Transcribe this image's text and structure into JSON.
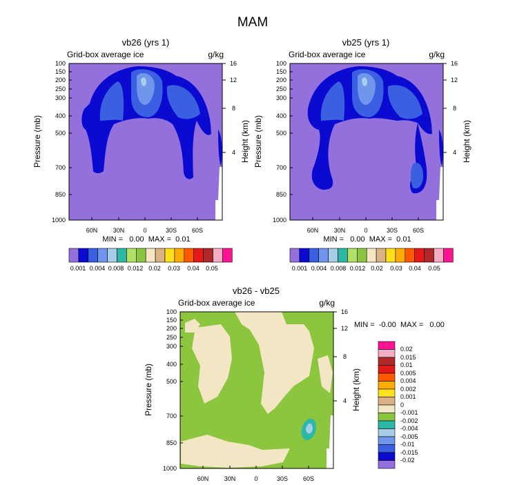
{
  "figure_title": "MAM",
  "chart_data": [
    {
      "type": "heatmap",
      "panel": "left",
      "title": "vb26 (yrs 1)",
      "field_label": "Grid-box average ice",
      "units": "g/kg",
      "ylabel": "Pressure (mb)",
      "ylabel_right": "Height (km)",
      "y_ticks": [
        "100",
        "150",
        "200",
        "250",
        "300",
        "400",
        "500",
        "700",
        "850",
        "1000"
      ],
      "y_right_ticks": [
        "16",
        "12",
        "8",
        "4"
      ],
      "x_ticks": [
        "60N",
        "30N",
        "0",
        "30S",
        "60S"
      ],
      "stats": "MIN =   0.00  MAX =  0.01",
      "legend_levels": [
        "0.001",
        "0.004",
        "0.008",
        "0.012",
        "0.02",
        "0.03",
        "0.04",
        "0.05"
      ],
      "legend_colors": [
        "#9370db",
        "#0a0ad0",
        "#3a5fe0",
        "#6f96ea",
        "#a8cde8",
        "#2cb8a6",
        "#b4e066",
        "#8cc63e",
        "#f2e6c4",
        "#dbb285",
        "#ffe11a",
        "#ffac00",
        "#ff5a00",
        "#e41a1a",
        "#b02828",
        "#f5afc3",
        "#ff1493"
      ]
    },
    {
      "type": "heatmap",
      "panel": "right",
      "title": "vb25 (yrs 1)",
      "field_label": "Grid-box average ice",
      "units": "g/kg",
      "ylabel": "Pressure (mb)",
      "ylabel_right": "Height (km)",
      "y_ticks": [
        "100",
        "150",
        "200",
        "250",
        "300",
        "400",
        "500",
        "700",
        "850",
        "1000"
      ],
      "y_right_ticks": [
        "16",
        "12",
        "8",
        "4"
      ],
      "x_ticks": [
        "60N",
        "30N",
        "0",
        "30S",
        "60S"
      ],
      "stats": "MIN =   0.00  MAX =  0.01",
      "legend_levels": [
        "0.001",
        "0.004",
        "0.008",
        "0.012",
        "0.02",
        "0.03",
        "0.04",
        "0.05"
      ],
      "legend_colors": [
        "#9370db",
        "#0a0ad0",
        "#3a5fe0",
        "#6f96ea",
        "#a8cde8",
        "#2cb8a6",
        "#b4e066",
        "#8cc63e",
        "#f2e6c4",
        "#dbb285",
        "#ffe11a",
        "#ffac00",
        "#ff5a00",
        "#e41a1a",
        "#b02828",
        "#f5afc3",
        "#ff1493"
      ]
    },
    {
      "type": "heatmap",
      "panel": "diff",
      "title": "vb26 - vb25",
      "field_label": "Grid-box average ice",
      "units": "g/kg",
      "ylabel": "Pressure (mb)",
      "ylabel_right": "Height (km)",
      "y_ticks": [
        "100",
        "150",
        "200",
        "250",
        "300",
        "400",
        "500",
        "700",
        "850",
        "1000"
      ],
      "y_right_ticks": [
        "16",
        "12",
        "8",
        "4"
      ],
      "x_ticks": [
        "60N",
        "30N",
        "0",
        "30S",
        "60S"
      ],
      "stats": "MIN =  -0.00  MAX =   0.00",
      "legend_levels": [
        "0.02",
        "0.015",
        "0.01",
        "0.005",
        "0.004",
        "0.002",
        "0.001",
        "0",
        "-0.001",
        "-0.002",
        "-0.004",
        "-0.005",
        "-0.01",
        "-0.015",
        "-0.02"
      ],
      "legend_colors": [
        "#ff1493",
        "#f5afc3",
        "#b02828",
        "#e41a1a",
        "#ff5a00",
        "#ffac00",
        "#ffe11a",
        "#dbb285",
        "#f2e6c4",
        "#8cc63e",
        "#2cb8a6",
        "#a8cde8",
        "#6f96ea",
        "#3a5fe0",
        "#0a0ad0",
        "#9370db"
      ]
    }
  ]
}
